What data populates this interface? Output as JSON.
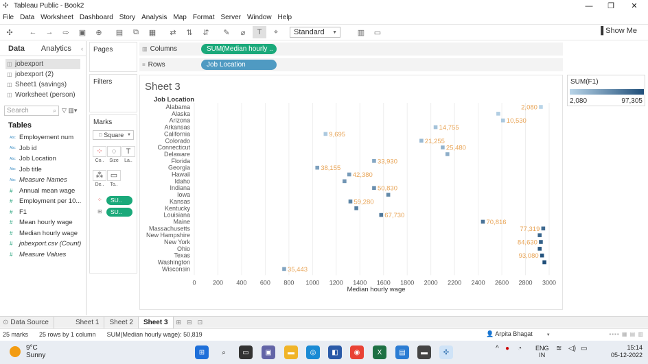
{
  "window": {
    "title": "Tableau Public - Book2",
    "minimize": "—",
    "restore": "❐",
    "close": "✕"
  },
  "menu": [
    "File",
    "Data",
    "Worksheet",
    "Dashboard",
    "Story",
    "Analysis",
    "Map",
    "Format",
    "Server",
    "Window",
    "Help"
  ],
  "toolbar": {
    "fit_value": "Standard",
    "show_me": "Show Me"
  },
  "left_panel": {
    "tab_data": "Data",
    "tab_analytics": "Analytics",
    "datasources": [
      "jobexport",
      "jobexport (2)",
      "Sheet1 (savings)",
      "Worksheet (person)"
    ],
    "search_placeholder": "Search",
    "tables_header": "Tables",
    "fields": [
      {
        "label": "Employement num",
        "kind": "dim"
      },
      {
        "label": "Job id",
        "kind": "dim"
      },
      {
        "label": "Job Location",
        "kind": "dim"
      },
      {
        "label": "Job title",
        "kind": "dim"
      },
      {
        "label": "Measure Names",
        "kind": "dim",
        "italic": true
      },
      {
        "label": "Annual mean wage",
        "kind": "meas"
      },
      {
        "label": "Employment per 10...",
        "kind": "meas"
      },
      {
        "label": "F1",
        "kind": "meas"
      },
      {
        "label": "Mean hourly wage",
        "kind": "meas"
      },
      {
        "label": "Median hourly wage",
        "kind": "meas"
      },
      {
        "label": "jobexport.csv (Count)",
        "kind": "meas",
        "italic": true
      },
      {
        "label": "Measure Values",
        "kind": "meas",
        "italic": true
      }
    ]
  },
  "cards": {
    "pages": "Pages",
    "filters": "Filters",
    "marks": "Marks",
    "mark_type": "Square",
    "mark_buttons": [
      "Co..",
      "Size",
      "La..",
      "De..",
      "To.."
    ],
    "mark_pills": [
      "SU..",
      "SU.."
    ]
  },
  "shelves": {
    "columns_label": "Columns",
    "columns_pill": "SUM(Median hourly ..",
    "rows_label": "Rows",
    "rows_pill": "Job Location"
  },
  "sheet": {
    "title": "Sheet 3",
    "row_header": "Job Location"
  },
  "legend": {
    "title": "SUM(F1)",
    "min": "2,080",
    "max": "97,305"
  },
  "chart_data": {
    "type": "scatter",
    "xlabel": "Median hourly wage",
    "xlim": [
      0,
      3000
    ],
    "x_ticks": [
      "0",
      "200",
      "400",
      "600",
      "800",
      "1000",
      "1200",
      "1400",
      "1600",
      "1800",
      "2000",
      "2200",
      "2400",
      "2600",
      "2800",
      "3000"
    ],
    "color_range": [
      2080,
      97305
    ],
    "color_low": "#b8d4e8",
    "color_high": "#1f4e79",
    "label_color": "#e8a456",
    "points": [
      {
        "state": "Alabama",
        "x": 2930,
        "f1": 2080,
        "label": "2,080"
      },
      {
        "state": "Alaska",
        "x": 2570,
        "f1": 6000,
        "label": ""
      },
      {
        "state": "Arizona",
        "x": 2610,
        "f1": 10530,
        "label": "10,530"
      },
      {
        "state": "Arkansas",
        "x": 2040,
        "f1": 14755,
        "label": "14,755"
      },
      {
        "state": "California",
        "x": 1110,
        "f1": 9695,
        "label": "9,695"
      },
      {
        "state": "Colorado",
        "x": 1920,
        "f1": 21255,
        "label": "21,255"
      },
      {
        "state": "Connecticut",
        "x": 2100,
        "f1": 25480,
        "label": "25,480"
      },
      {
        "state": "Delaware",
        "x": 2140,
        "f1": 29000,
        "label": ""
      },
      {
        "state": "Florida",
        "x": 1520,
        "f1": 33930,
        "label": "33,930"
      },
      {
        "state": "Georgia",
        "x": 1040,
        "f1": 38155,
        "label": "38,155"
      },
      {
        "state": "Hawaii",
        "x": 1310,
        "f1": 42380,
        "label": "42,380"
      },
      {
        "state": "Idaho",
        "x": 1270,
        "f1": 46500,
        "label": ""
      },
      {
        "state": "Indiana",
        "x": 1520,
        "f1": 50830,
        "label": "50,830"
      },
      {
        "state": "Iowa",
        "x": 1640,
        "f1": 55000,
        "label": ""
      },
      {
        "state": "Kansas",
        "x": 1320,
        "f1": 59280,
        "label": "59,280"
      },
      {
        "state": "Kentucky",
        "x": 1370,
        "f1": 63500,
        "label": ""
      },
      {
        "state": "Louisiana",
        "x": 1580,
        "f1": 67730,
        "label": "67,730"
      },
      {
        "state": "Maine",
        "x": 2440,
        "f1": 70816,
        "label": "70,816"
      },
      {
        "state": "Massachusetts",
        "x": 2950,
        "f1": 77319,
        "label": "77,319"
      },
      {
        "state": "New Hampshire",
        "x": 2920,
        "f1": 80500,
        "label": ""
      },
      {
        "state": "New York",
        "x": 2930,
        "f1": 84630,
        "label": "84,630"
      },
      {
        "state": "Ohio",
        "x": 2920,
        "f1": 88800,
        "label": ""
      },
      {
        "state": "Texas",
        "x": 2940,
        "f1": 93080,
        "label": "93,080"
      },
      {
        "state": "Washington",
        "x": 2960,
        "f1": 97305,
        "label": ""
      },
      {
        "state": "Wisconsin",
        "x": 760,
        "f1": 35443,
        "label": "35,443"
      }
    ]
  },
  "sheet_tabs": {
    "data_source": "Data Source",
    "tabs": [
      "Sheet 1",
      "Sheet 2",
      "Sheet 3"
    ],
    "active": "Sheet 3"
  },
  "status": {
    "marks": "25 marks",
    "dims": "25 rows by 1 column",
    "sum": "SUM(Median hourly wage): 50,819",
    "user": "Arpita Bhagat"
  },
  "taskbar": {
    "temp": "9°C",
    "weather": "Sunny",
    "lang1": "ENG",
    "lang2": "IN",
    "time": "15:14",
    "date": "05-12-2022"
  }
}
